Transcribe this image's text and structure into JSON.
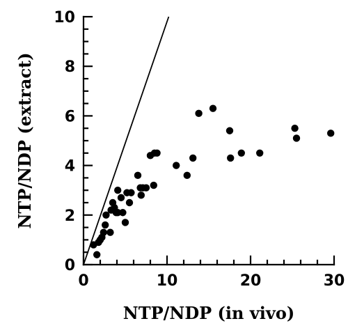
{
  "chart_data": {
    "type": "scatter",
    "title": "",
    "xlabel": "NTP/NDP (in vivo)",
    "ylabel": "NTP/NDP (extract)",
    "xlim": [
      0,
      30
    ],
    "ylim": [
      0,
      10
    ],
    "x_ticks": [
      0,
      10,
      20,
      30
    ],
    "y_ticks": [
      0,
      2,
      4,
      6,
      8,
      10
    ],
    "x_tick_labels": [
      "0",
      "10",
      "20",
      "30"
    ],
    "y_tick_labels": [
      "0",
      "2",
      "4",
      "6",
      "8",
      "10"
    ],
    "grid": false,
    "legend": "none",
    "reference_line": {
      "type": "identity",
      "points": [
        [
          0,
          0
        ],
        [
          10.2,
          10
        ]
      ]
    },
    "series": [
      {
        "marker": "filled-circle",
        "color": "#000000",
        "points": [
          [
            1.2,
            0.8
          ],
          [
            1.6,
            0.4
          ],
          [
            1.8,
            0.9
          ],
          [
            2.0,
            1.0
          ],
          [
            2.2,
            1.1
          ],
          [
            2.4,
            1.3
          ],
          [
            2.6,
            1.6
          ],
          [
            2.7,
            2.0
          ],
          [
            3.2,
            1.3
          ],
          [
            3.3,
            2.2
          ],
          [
            3.5,
            2.5
          ],
          [
            3.7,
            2.3
          ],
          [
            3.9,
            2.1
          ],
          [
            4.1,
            2.1
          ],
          [
            4.1,
            3.0
          ],
          [
            4.5,
            2.7
          ],
          [
            4.7,
            2.1
          ],
          [
            5.0,
            1.7
          ],
          [
            5.2,
            2.9
          ],
          [
            5.5,
            2.5
          ],
          [
            5.7,
            2.9
          ],
          [
            6.5,
            3.6
          ],
          [
            6.8,
            3.1
          ],
          [
            6.9,
            2.8
          ],
          [
            7.1,
            3.1
          ],
          [
            7.5,
            3.1
          ],
          [
            8.0,
            4.4
          ],
          [
            8.4,
            3.2
          ],
          [
            8.5,
            4.5
          ],
          [
            8.8,
            4.5
          ],
          [
            11.1,
            4.0
          ],
          [
            12.4,
            3.6
          ],
          [
            13.1,
            4.3
          ],
          [
            13.8,
            6.1
          ],
          [
            15.5,
            6.3
          ],
          [
            17.5,
            5.4
          ],
          [
            17.6,
            4.3
          ],
          [
            18.9,
            4.5
          ],
          [
            21.1,
            4.5
          ],
          [
            25.3,
            5.5
          ],
          [
            25.5,
            5.1
          ],
          [
            29.6,
            5.3
          ]
        ]
      }
    ]
  }
}
